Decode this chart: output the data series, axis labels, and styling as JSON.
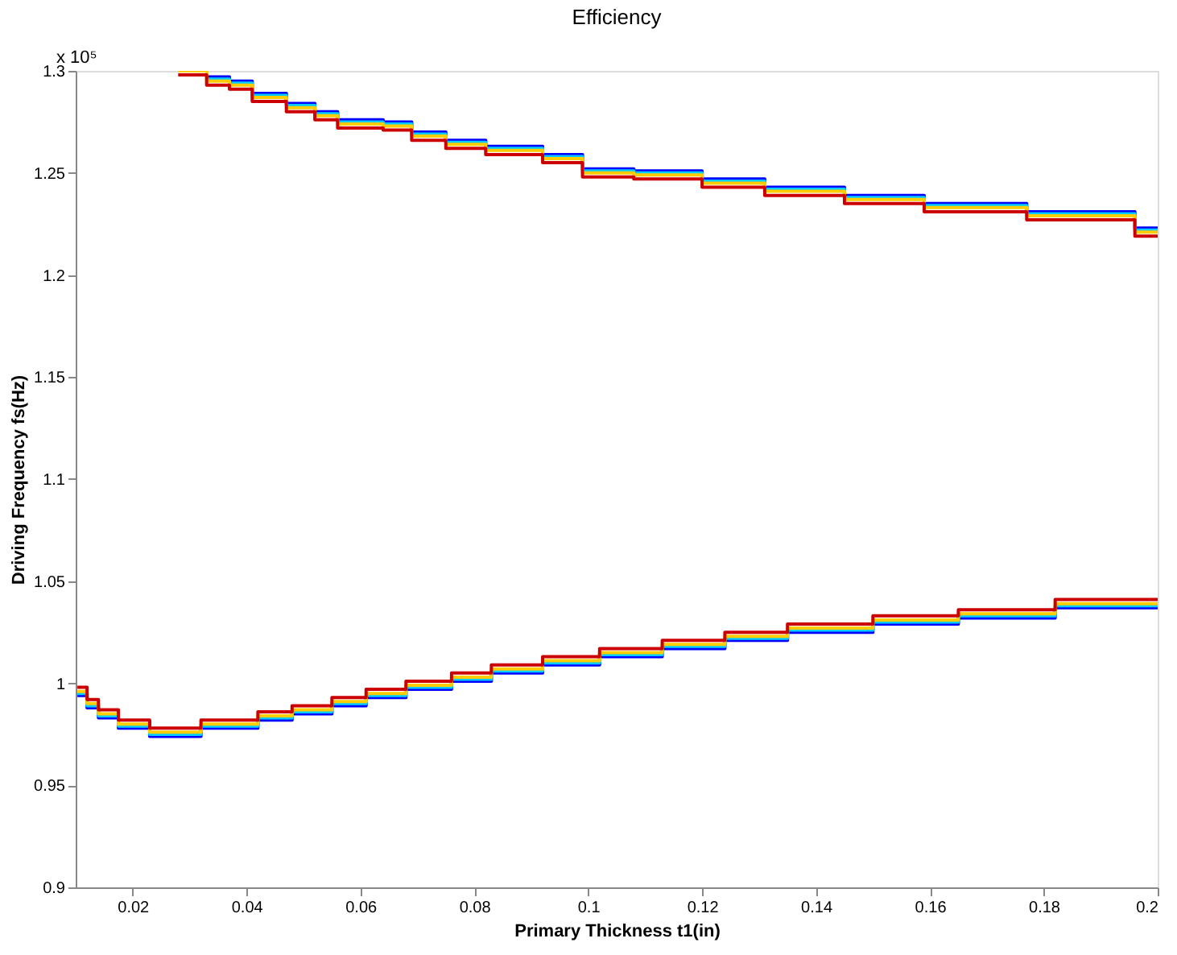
{
  "chart_data": {
    "type": "step",
    "title": "Efficiency",
    "xlabel": "Primary Thickness t1(in)",
    "ylabel": "Driving Frequency fs(Hz)",
    "annotations": [
      "x 10⁵"
    ],
    "xlim": [
      0.01,
      0.2
    ],
    "xticks": [
      0.02,
      0.04,
      0.06,
      0.08,
      0.1,
      0.12,
      0.14,
      0.16,
      0.18,
      0.2
    ],
    "ylim": [
      0.9,
      1.3
    ],
    "yticks": [
      0.9,
      0.95,
      1,
      1.05,
      1.1,
      1.15,
      1.2,
      1.25,
      1.3
    ],
    "grid": false,
    "line_style": "solid",
    "series": [
      {
        "color": "#0000ff",
        "x": [
          0.033,
          0.037,
          0.041,
          0.047,
          0.052,
          0.056,
          0.064,
          0.069,
          0.075,
          0.082,
          0.092,
          0.099,
          0.108,
          0.12,
          0.131,
          0.145,
          0.159,
          0.177,
          0.196,
          0.2
        ],
        "values": [
          1.297,
          1.295,
          1.289,
          1.284,
          1.28,
          1.276,
          1.275,
          1.27,
          1.266,
          1.263,
          1.259,
          1.252,
          1.251,
          1.247,
          1.243,
          1.239,
          1.235,
          1.231,
          1.223,
          1.223
        ]
      },
      {
        "color": "#00ccff",
        "x": [
          0.033,
          0.037,
          0.041,
          0.047,
          0.052,
          0.056,
          0.064,
          0.069,
          0.075,
          0.082,
          0.092,
          0.099,
          0.108,
          0.12,
          0.131,
          0.145,
          0.159,
          0.177,
          0.196,
          0.2
        ],
        "values": [
          1.296,
          1.294,
          1.288,
          1.283,
          1.279,
          1.275,
          1.274,
          1.269,
          1.265,
          1.262,
          1.258,
          1.251,
          1.25,
          1.246,
          1.242,
          1.238,
          1.234,
          1.23,
          1.222,
          1.222
        ]
      },
      {
        "color": "#ffcc00",
        "x": [
          0.028,
          0.033,
          0.037,
          0.041,
          0.047,
          0.052,
          0.056,
          0.064,
          0.069,
          0.075,
          0.082,
          0.092,
          0.099,
          0.108,
          0.12,
          0.131,
          0.145,
          0.159,
          0.177,
          0.196,
          0.2
        ],
        "values": [
          1.3,
          1.295,
          1.293,
          1.287,
          1.282,
          1.278,
          1.274,
          1.273,
          1.268,
          1.264,
          1.261,
          1.257,
          1.25,
          1.249,
          1.245,
          1.241,
          1.237,
          1.233,
          1.229,
          1.221,
          1.221
        ]
      },
      {
        "color": "#cc0000",
        "x": [
          0.028,
          0.033,
          0.037,
          0.041,
          0.047,
          0.052,
          0.056,
          0.064,
          0.069,
          0.075,
          0.082,
          0.092,
          0.099,
          0.108,
          0.12,
          0.131,
          0.145,
          0.159,
          0.177,
          0.196,
          0.2
        ],
        "values": [
          1.298,
          1.293,
          1.291,
          1.285,
          1.28,
          1.276,
          1.272,
          1.271,
          1.266,
          1.262,
          1.259,
          1.255,
          1.248,
          1.247,
          1.243,
          1.239,
          1.235,
          1.231,
          1.227,
          1.219,
          1.219
        ]
      },
      {
        "color": "#0000ff",
        "x": [
          0.0103,
          0.012,
          0.014,
          0.0175,
          0.023,
          0.032,
          0.042,
          0.048,
          0.055,
          0.061,
          0.068,
          0.076,
          0.083,
          0.092,
          0.102,
          0.113,
          0.124,
          0.135,
          0.15,
          0.165,
          0.182,
          0.2
        ],
        "values": [
          0.994,
          0.988,
          0.983,
          0.978,
          0.974,
          0.978,
          0.982,
          0.985,
          0.989,
          0.993,
          0.997,
          1.001,
          1.005,
          1.009,
          1.013,
          1.017,
          1.021,
          1.025,
          1.029,
          1.032,
          1.037,
          1.037
        ]
      },
      {
        "color": "#00ccff",
        "x": [
          0.0103,
          0.012,
          0.014,
          0.0175,
          0.023,
          0.032,
          0.042,
          0.048,
          0.055,
          0.061,
          0.068,
          0.076,
          0.083,
          0.092,
          0.102,
          0.113,
          0.124,
          0.135,
          0.15,
          0.165,
          0.182,
          0.2
        ],
        "values": [
          0.995,
          0.989,
          0.984,
          0.979,
          0.975,
          0.979,
          0.983,
          0.986,
          0.99,
          0.994,
          0.998,
          1.002,
          1.006,
          1.01,
          1.014,
          1.018,
          1.022,
          1.026,
          1.03,
          1.033,
          1.038,
          1.038
        ]
      },
      {
        "color": "#ffcc00",
        "x": [
          0.0103,
          0.012,
          0.014,
          0.0175,
          0.023,
          0.032,
          0.042,
          0.048,
          0.055,
          0.061,
          0.068,
          0.076,
          0.083,
          0.092,
          0.102,
          0.113,
          0.124,
          0.135,
          0.15,
          0.165,
          0.182,
          0.2
        ],
        "values": [
          0.996,
          0.99,
          0.985,
          0.98,
          0.976,
          0.98,
          0.984,
          0.987,
          0.991,
          0.995,
          0.999,
          1.003,
          1.007,
          1.011,
          1.015,
          1.019,
          1.023,
          1.027,
          1.031,
          1.034,
          1.039,
          1.039
        ]
      },
      {
        "color": "#cc0000",
        "x": [
          0.0103,
          0.012,
          0.014,
          0.0175,
          0.023,
          0.032,
          0.042,
          0.048,
          0.055,
          0.061,
          0.068,
          0.076,
          0.083,
          0.092,
          0.102,
          0.113,
          0.124,
          0.135,
          0.15,
          0.165,
          0.182,
          0.2
        ],
        "values": [
          0.998,
          0.992,
          0.987,
          0.982,
          0.978,
          0.982,
          0.986,
          0.989,
          0.993,
          0.997,
          1.001,
          1.005,
          1.009,
          1.013,
          1.017,
          1.021,
          1.025,
          1.029,
          1.033,
          1.036,
          1.041,
          1.041
        ]
      }
    ]
  }
}
